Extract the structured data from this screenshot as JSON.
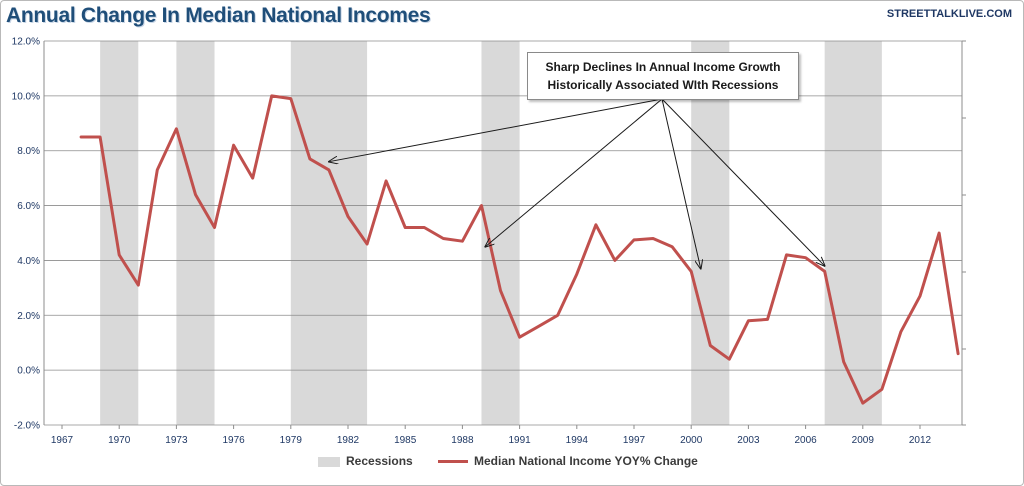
{
  "header": {
    "title": "Annual Change In Median National Incomes",
    "source": "STREETTALKLIVE.COM"
  },
  "annotation": {
    "line1": "Sharp Declines In Annual Income Growth",
    "line2": "Historically Associated WIth Recessions"
  },
  "legend": {
    "recessions_label": "Recessions",
    "series_label": "Median National Income YOY% Change"
  },
  "colors": {
    "series_line": "#c0504d",
    "recession_band": "#d9d9d9",
    "gridline": "#8c8c8c",
    "axis_text": "#1f3864",
    "title": "#1f4e79"
  },
  "chart_data": {
    "type": "line",
    "title": "Annual Change In Median National Incomes",
    "xlabel": "",
    "ylabel": "",
    "xlim": [
      1967,
      2015
    ],
    "ylim": [
      -2,
      12
    ],
    "grid": true,
    "legend_position": "bottom",
    "y_ticks": [
      "-2.0%",
      "0.0%",
      "2.0%",
      "4.0%",
      "6.0%",
      "8.0%",
      "10.0%",
      "12.0%"
    ],
    "y_tick_values": [
      -2,
      0,
      2,
      4,
      6,
      8,
      10,
      12
    ],
    "x_ticks": [
      "1967",
      "1970",
      "1973",
      "1976",
      "1979",
      "1982",
      "1985",
      "1988",
      "1991",
      "1994",
      "1997",
      "2000",
      "2003",
      "2006",
      "2009",
      "2012"
    ],
    "x_tick_values": [
      1967,
      1970,
      1973,
      1976,
      1979,
      1982,
      1985,
      1988,
      1991,
      1994,
      1997,
      2000,
      2003,
      2006,
      2009,
      2012
    ],
    "recessions": [
      {
        "start": 1969.0,
        "end": 1971.0
      },
      {
        "start": 1973.0,
        "end": 1975.0
      },
      {
        "start": 1979.0,
        "end": 1983.0
      },
      {
        "start": 1989.0,
        "end": 1991.0
      },
      {
        "start": 2000.0,
        "end": 2002.0
      },
      {
        "start": 2007.0,
        "end": 2010.0
      }
    ],
    "series": [
      {
        "name": "Median National Income YOY% Change",
        "x": [
          1968,
          1969,
          1970,
          1971,
          1972,
          1973,
          1974,
          1975,
          1976,
          1977,
          1978,
          1979,
          1980,
          1981,
          1982,
          1983,
          1984,
          1985,
          1986,
          1987,
          1988,
          1989,
          1990,
          1991,
          1992,
          1993,
          1994,
          1995,
          1996,
          1997,
          1998,
          1999,
          2000,
          2001,
          2002,
          2003,
          2004,
          2005,
          2006,
          2007,
          2008,
          2009,
          2010,
          2011,
          2012,
          2013,
          2014
        ],
        "values": [
          8.5,
          8.5,
          4.2,
          3.1,
          7.3,
          8.8,
          6.4,
          5.2,
          8.2,
          7.0,
          10.0,
          9.9,
          7.7,
          7.3,
          5.6,
          4.6,
          6.9,
          5.2,
          5.2,
          4.8,
          4.7,
          6.0,
          2.9,
          1.2,
          1.6,
          2.0,
          3.5,
          5.3,
          4.0,
          4.75,
          4.8,
          4.5,
          3.6,
          0.9,
          0.4,
          1.8,
          1.85,
          4.2,
          4.1,
          3.6,
          0.3,
          -1.2,
          -0.7,
          1.4,
          2.7,
          5.0,
          0.6
        ]
      }
    ],
    "arrows": [
      {
        "x": 1981.0,
        "y": 7.6
      },
      {
        "x": 1989.2,
        "y": 4.5
      },
      {
        "x": 2000.5,
        "y": 3.7
      },
      {
        "x": 2007.0,
        "y": 3.8
      }
    ]
  }
}
